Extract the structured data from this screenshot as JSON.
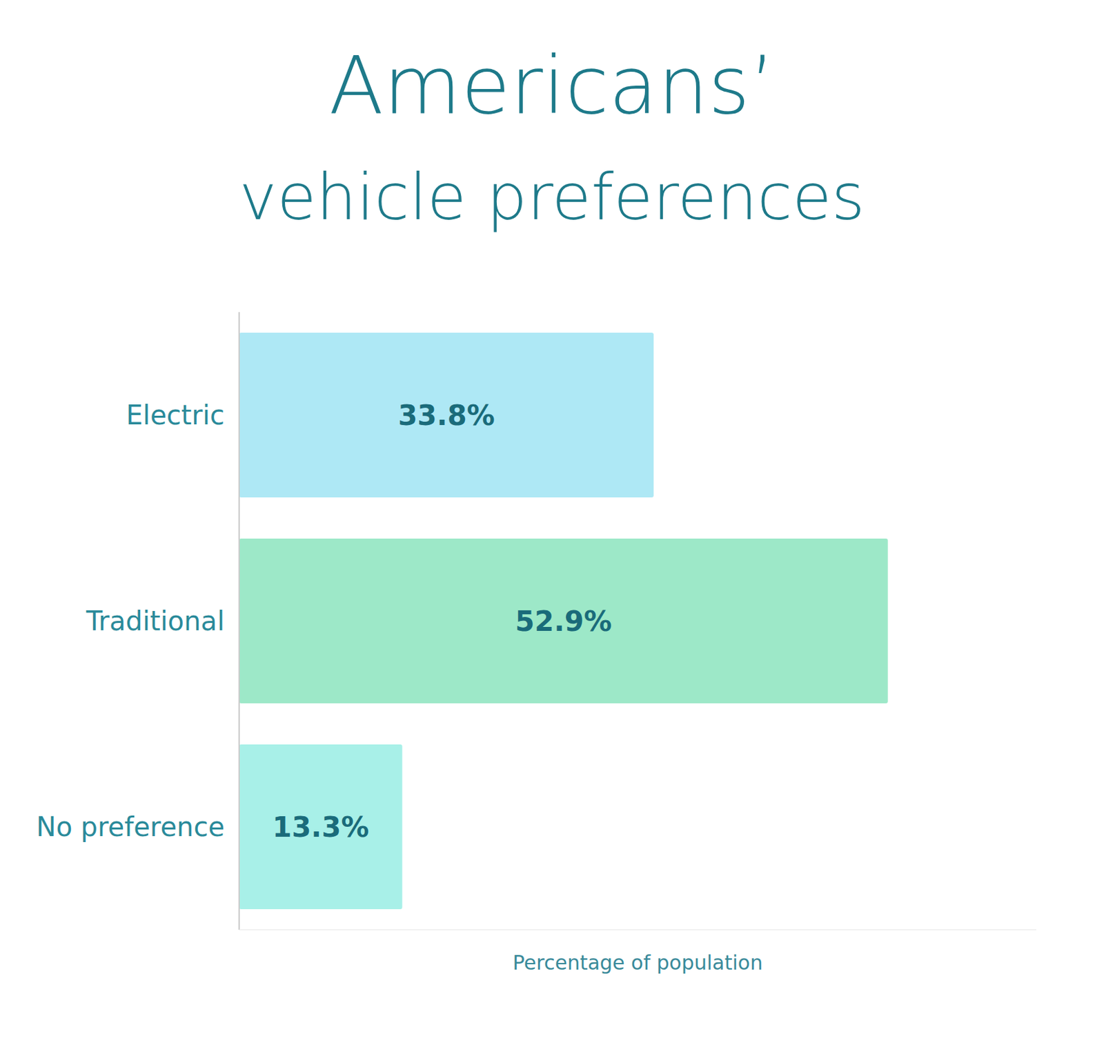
{
  "chart_data": {
    "type": "bar",
    "orientation": "horizontal",
    "title": "Americans’",
    "subtitle": "vehicle preferences",
    "categories": [
      "Electric",
      "Traditional",
      "No preference"
    ],
    "values": [
      33.8,
      52.9,
      13.3
    ],
    "value_labels": [
      "33.8%",
      "52.9%",
      "13.3%"
    ],
    "data_labels": true,
    "colors": [
      "#aee8f5",
      "#9de8c8",
      "#a8f0e8"
    ],
    "xlabel": "Percentage of population",
    "xlim": [
      0,
      65
    ],
    "tick_labels": "y",
    "grid": false
  }
}
